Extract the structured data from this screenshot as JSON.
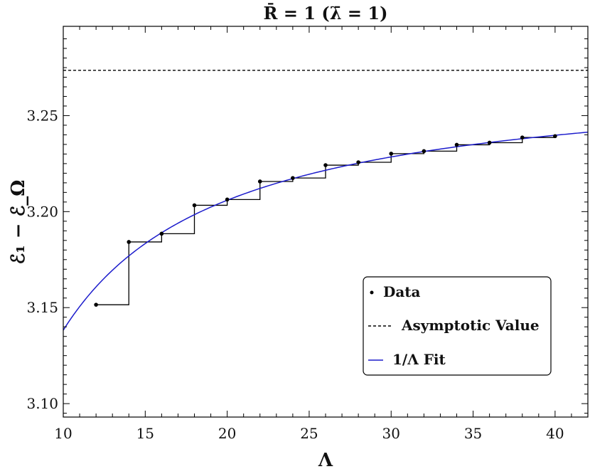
{
  "chart_data": {
    "type": "scatter",
    "title": "R̄ = 1 (λ̄ = 1)",
    "xlabel": "Λ",
    "ylabel": "ℰ₁ − ℰ_Ω",
    "xlim": [
      10,
      42
    ],
    "ylim": [
      3.093,
      3.2965
    ],
    "x_ticks": [
      10,
      15,
      20,
      25,
      30,
      35,
      40
    ],
    "x_tick_labels": [
      "10",
      "15",
      "20",
      "25",
      "30",
      "35",
      "40"
    ],
    "y_ticks": [
      3.1,
      3.15,
      3.2,
      3.25
    ],
    "y_tick_labels": [
      "3.10",
      "3.15",
      "3.20",
      "3.25"
    ],
    "grid": false,
    "legend_position": "bottom-right",
    "series": [
      {
        "name": "Data",
        "style": "points-with-steps",
        "color": "#000000",
        "x": [
          12,
          14,
          16,
          18,
          20,
          22,
          24,
          26,
          28,
          30,
          32,
          34,
          36,
          38,
          40
        ],
        "y": [
          3.1515,
          3.1842,
          3.1885,
          3.2033,
          3.2063,
          3.2157,
          3.2175,
          3.2242,
          3.2257,
          3.2302,
          3.2315,
          3.2348,
          3.2359,
          3.2386,
          3.2393
        ]
      },
      {
        "name": "Asymptotic Value",
        "style": "dashed-hline",
        "color": "#000000",
        "y": 3.2736
      },
      {
        "name": "1/Λ Fit",
        "style": "curve",
        "color": "#1c1ccc",
        "fit_form": "a - b/Λ",
        "a": 3.2736,
        "b": 1.3535
      }
    ]
  }
}
